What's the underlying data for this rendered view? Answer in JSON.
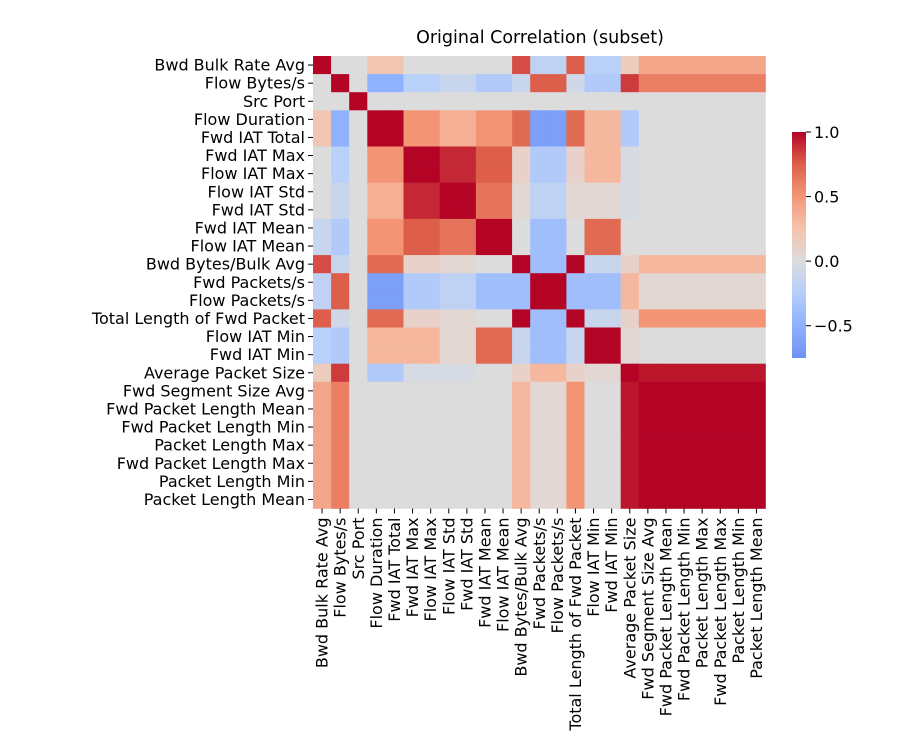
{
  "chart_data": {
    "type": "heatmap",
    "title": "Original Correlation (subset)",
    "xlabel": "",
    "ylabel": "",
    "labels": [
      "Bwd Bulk Rate Avg",
      "Flow Bytes/s",
      "Src Port",
      "Flow Duration",
      "Fwd IAT Total",
      "Fwd IAT Max",
      "Flow IAT Max",
      "Flow IAT Std",
      "Fwd IAT Std",
      "Fwd IAT Mean",
      "Flow IAT Mean",
      "Bwd Bytes/Bulk Avg",
      "Fwd Packets/s",
      "Flow Packets/s",
      "Total Length of Fwd Packet",
      "Flow IAT Min",
      "Fwd IAT Min",
      "Average Packet Size",
      "Fwd Segment Size Avg",
      "Fwd Packet Length Mean",
      "Fwd Packet Length Min",
      "Packet Length Max",
      "Fwd Packet Length Max",
      "Packet Length Min",
      "Packet Length Mean"
    ],
    "matrix": [
      [
        1.0,
        0.0,
        0.0,
        0.2,
        0.2,
        0.0,
        0.0,
        0.0,
        0.0,
        0.0,
        0.0,
        0.8,
        -0.2,
        -0.2,
        0.75,
        -0.25,
        -0.25,
        0.15,
        0.4,
        0.4,
        0.4,
        0.4,
        0.4,
        0.4,
        0.4
      ],
      [
        0.0,
        1.0,
        0.0,
        -0.5,
        -0.5,
        -0.25,
        -0.25,
        -0.15,
        -0.15,
        -0.3,
        -0.3,
        -0.15,
        0.75,
        0.75,
        -0.1,
        -0.3,
        -0.3,
        0.85,
        0.6,
        0.6,
        0.6,
        0.6,
        0.6,
        0.6,
        0.6
      ],
      [
        0.0,
        0.0,
        1.0,
        0.0,
        0.0,
        0.0,
        0.0,
        0.0,
        0.0,
        0.0,
        0.0,
        0.0,
        0.0,
        0.0,
        0.0,
        0.0,
        0.0,
        0.0,
        0.0,
        0.0,
        0.0,
        0.0,
        0.0,
        0.0,
        0.0
      ],
      [
        0.2,
        -0.5,
        0.0,
        1.0,
        1.0,
        0.5,
        0.5,
        0.35,
        0.35,
        0.5,
        0.5,
        0.7,
        -0.65,
        -0.65,
        0.7,
        0.3,
        0.3,
        -0.3,
        0.0,
        0.0,
        0.0,
        0.0,
        0.0,
        0.0,
        0.0
      ],
      [
        0.2,
        -0.5,
        0.0,
        1.0,
        1.0,
        0.5,
        0.5,
        0.35,
        0.35,
        0.5,
        0.5,
        0.7,
        -0.65,
        -0.65,
        0.7,
        0.3,
        0.3,
        -0.3,
        0.0,
        0.0,
        0.0,
        0.0,
        0.0,
        0.0,
        0.0
      ],
      [
        0.0,
        -0.25,
        0.0,
        0.5,
        0.5,
        1.0,
        1.0,
        0.9,
        0.9,
        0.75,
        0.75,
        0.1,
        -0.3,
        -0.3,
        0.1,
        0.3,
        0.3,
        -0.05,
        0.0,
        0.0,
        0.0,
        0.0,
        0.0,
        0.0,
        0.0
      ],
      [
        0.0,
        -0.25,
        0.0,
        0.5,
        0.5,
        1.0,
        1.0,
        0.9,
        0.9,
        0.75,
        0.75,
        0.1,
        -0.3,
        -0.3,
        0.1,
        0.3,
        0.3,
        -0.05,
        0.0,
        0.0,
        0.0,
        0.0,
        0.0,
        0.0,
        0.0
      ],
      [
        0.0,
        -0.15,
        0.0,
        0.35,
        0.35,
        0.9,
        0.9,
        1.0,
        1.0,
        0.65,
        0.65,
        0.05,
        -0.2,
        -0.2,
        0.05,
        0.05,
        0.05,
        -0.05,
        0.0,
        0.0,
        0.0,
        0.0,
        0.0,
        0.0,
        0.0
      ],
      [
        0.0,
        -0.15,
        0.0,
        0.35,
        0.35,
        0.9,
        0.9,
        1.0,
        1.0,
        0.65,
        0.65,
        0.05,
        -0.2,
        -0.2,
        0.05,
        0.05,
        0.05,
        -0.05,
        0.0,
        0.0,
        0.0,
        0.0,
        0.0,
        0.0,
        0.0
      ],
      [
        -0.15,
        -0.3,
        0.0,
        0.5,
        0.5,
        0.75,
        0.75,
        0.65,
        0.65,
        1.0,
        1.0,
        0.0,
        -0.4,
        -0.4,
        0.0,
        0.7,
        0.7,
        0.0,
        0.0,
        0.0,
        0.0,
        0.0,
        0.0,
        0.0,
        0.0
      ],
      [
        -0.15,
        -0.3,
        0.0,
        0.5,
        0.5,
        0.75,
        0.75,
        0.65,
        0.65,
        1.0,
        1.0,
        0.0,
        -0.4,
        -0.4,
        0.0,
        0.7,
        0.7,
        0.0,
        0.0,
        0.0,
        0.0,
        0.0,
        0.0,
        0.0,
        0.0
      ],
      [
        0.8,
        -0.15,
        0.0,
        0.7,
        0.7,
        0.1,
        0.1,
        0.05,
        0.05,
        0.0,
        0.0,
        1.0,
        -0.4,
        -0.4,
        1.0,
        -0.15,
        -0.15,
        0.1,
        0.3,
        0.3,
        0.3,
        0.3,
        0.3,
        0.3,
        0.3
      ],
      [
        -0.2,
        0.75,
        0.0,
        -0.65,
        -0.65,
        -0.3,
        -0.3,
        -0.2,
        -0.2,
        -0.4,
        -0.4,
        -0.4,
        1.0,
        1.0,
        -0.4,
        -0.4,
        -0.4,
        0.3,
        0.05,
        0.05,
        0.05,
        0.05,
        0.05,
        0.05,
        0.05
      ],
      [
        -0.2,
        0.75,
        0.0,
        -0.65,
        -0.65,
        -0.3,
        -0.3,
        -0.2,
        -0.2,
        -0.4,
        -0.4,
        -0.4,
        1.0,
        1.0,
        -0.4,
        -0.4,
        -0.4,
        0.3,
        0.05,
        0.05,
        0.05,
        0.05,
        0.05,
        0.05,
        0.05
      ],
      [
        0.75,
        -0.1,
        0.0,
        0.7,
        0.7,
        0.1,
        0.1,
        0.05,
        0.05,
        0.0,
        0.0,
        1.0,
        -0.4,
        -0.4,
        1.0,
        -0.15,
        -0.15,
        0.1,
        0.5,
        0.5,
        0.5,
        0.5,
        0.5,
        0.5,
        0.5
      ],
      [
        -0.25,
        -0.3,
        0.0,
        0.3,
        0.3,
        0.3,
        0.3,
        0.05,
        0.05,
        0.7,
        0.7,
        -0.15,
        -0.4,
        -0.4,
        -0.15,
        1.0,
        1.0,
        0.05,
        0.0,
        0.0,
        0.0,
        0.0,
        0.0,
        0.0,
        0.0
      ],
      [
        -0.25,
        -0.3,
        0.0,
        0.3,
        0.3,
        0.3,
        0.3,
        0.05,
        0.05,
        0.7,
        0.7,
        -0.15,
        -0.4,
        -0.4,
        -0.15,
        1.0,
        1.0,
        0.05,
        0.0,
        0.0,
        0.0,
        0.0,
        0.0,
        0.0,
        0.0
      ],
      [
        0.15,
        0.85,
        0.0,
        -0.3,
        -0.3,
        -0.05,
        -0.05,
        -0.05,
        -0.05,
        0.0,
        0.0,
        0.1,
        0.3,
        0.3,
        0.1,
        0.05,
        0.05,
        1.0,
        0.95,
        0.95,
        0.95,
        0.95,
        0.95,
        0.95,
        0.95
      ],
      [
        0.4,
        0.6,
        0.0,
        0.0,
        0.0,
        0.0,
        0.0,
        0.0,
        0.0,
        0.0,
        0.0,
        0.3,
        0.05,
        0.05,
        0.5,
        0.0,
        0.0,
        0.95,
        1.0,
        1.0,
        1.0,
        1.0,
        1.0,
        1.0,
        1.0
      ],
      [
        0.4,
        0.6,
        0.0,
        0.0,
        0.0,
        0.0,
        0.0,
        0.0,
        0.0,
        0.0,
        0.0,
        0.3,
        0.05,
        0.05,
        0.5,
        0.0,
        0.0,
        0.95,
        1.0,
        1.0,
        1.0,
        1.0,
        1.0,
        1.0,
        1.0
      ],
      [
        0.4,
        0.6,
        0.0,
        0.0,
        0.0,
        0.0,
        0.0,
        0.0,
        0.0,
        0.0,
        0.0,
        0.3,
        0.05,
        0.05,
        0.5,
        0.0,
        0.0,
        0.95,
        1.0,
        1.0,
        1.0,
        1.0,
        1.0,
        1.0,
        1.0
      ],
      [
        0.4,
        0.6,
        0.0,
        0.0,
        0.0,
        0.0,
        0.0,
        0.0,
        0.0,
        0.0,
        0.0,
        0.3,
        0.05,
        0.05,
        0.5,
        0.0,
        0.0,
        0.95,
        1.0,
        1.0,
        1.0,
        1.0,
        1.0,
        1.0,
        1.0
      ],
      [
        0.4,
        0.6,
        0.0,
        0.0,
        0.0,
        0.0,
        0.0,
        0.0,
        0.0,
        0.0,
        0.0,
        0.3,
        0.05,
        0.05,
        0.5,
        0.0,
        0.0,
        0.95,
        1.0,
        1.0,
        1.0,
        1.0,
        1.0,
        1.0,
        1.0
      ],
      [
        0.4,
        0.6,
        0.0,
        0.0,
        0.0,
        0.0,
        0.0,
        0.0,
        0.0,
        0.0,
        0.0,
        0.3,
        0.05,
        0.05,
        0.5,
        0.0,
        0.0,
        0.95,
        1.0,
        1.0,
        1.0,
        1.0,
        1.0,
        1.0,
        1.0
      ],
      [
        0.4,
        0.6,
        0.0,
        0.0,
        0.0,
        0.0,
        0.0,
        0.0,
        0.0,
        0.0,
        0.0,
        0.3,
        0.05,
        0.05,
        0.5,
        0.0,
        0.0,
        0.95,
        1.0,
        1.0,
        1.0,
        1.0,
        1.0,
        1.0,
        1.0
      ]
    ],
    "colorbar": {
      "colormap": "coolwarm",
      "range": [
        -0.75,
        1.0
      ],
      "ticks": [
        -0.5,
        0.0,
        0.5,
        1.0
      ],
      "tick_labels": [
        "−0.5",
        "0.0",
        "0.5",
        "1.0"
      ]
    },
    "legend": "right"
  }
}
